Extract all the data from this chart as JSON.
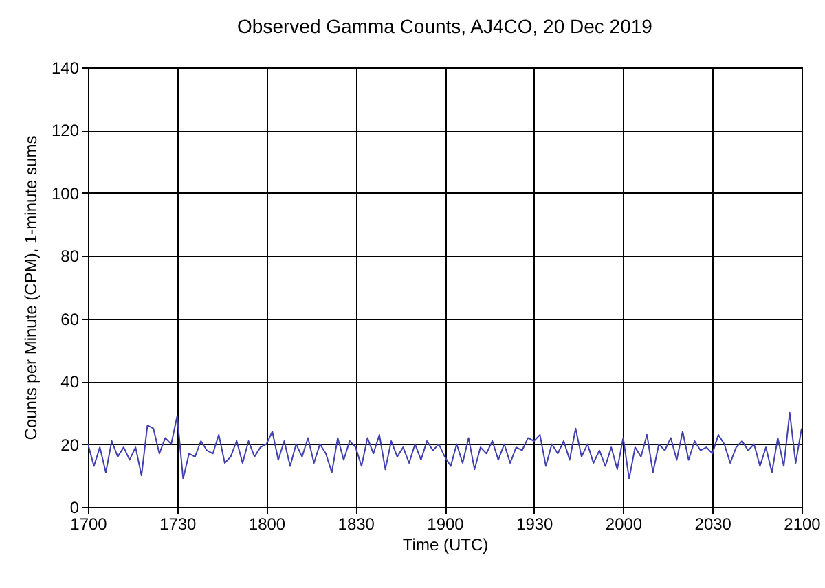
{
  "chart_data": {
    "type": "line",
    "title": "Observed Gamma Counts, AJ4CO, 20 Dec 2019",
    "xlabel": "Time (UTC)",
    "ylabel": "Counts per Minute (CPM), 1-minute sums",
    "categories": [
      "1700",
      null,
      null,
      null,
      null,
      null,
      null,
      null,
      null,
      null,
      null,
      null,
      null,
      null,
      null,
      "1730",
      null,
      null,
      null,
      null,
      null,
      null,
      null,
      null,
      null,
      null,
      null,
      null,
      null,
      null,
      "1800",
      null,
      null,
      null,
      null,
      null,
      null,
      null,
      null,
      null,
      null,
      null,
      null,
      null,
      null,
      "1830",
      null,
      null,
      null,
      null,
      null,
      null,
      null,
      null,
      null,
      null,
      null,
      null,
      null,
      null,
      "1900",
      null,
      null,
      null,
      null,
      null,
      null,
      null,
      null,
      null,
      null,
      null,
      null,
      null,
      null,
      "1930",
      null,
      null,
      null,
      null,
      null,
      null,
      null,
      null,
      null,
      null,
      null,
      null,
      null,
      null,
      "2000",
      null,
      null,
      null,
      null,
      null,
      null,
      null,
      null,
      null,
      null,
      null,
      null,
      null,
      null,
      "2030",
      null,
      null,
      null,
      null,
      null,
      null,
      null,
      null,
      null,
      null,
      null,
      null,
      null,
      null,
      "2100"
    ],
    "series": [
      {
        "color": "#4040b0",
        "values": [
          20,
          13,
          19,
          11,
          21,
          16,
          19,
          15,
          19,
          10,
          26,
          25,
          17,
          22,
          20,
          29,
          9,
          17,
          16,
          21,
          18,
          17,
          23,
          14,
          16,
          21,
          14,
          21,
          16,
          19,
          20,
          24,
          15,
          21,
          13,
          20,
          16,
          22,
          14,
          20,
          17,
          11,
          22,
          15,
          21,
          19,
          13,
          22,
          17,
          23,
          12,
          21,
          16,
          19,
          14,
          20,
          15,
          21,
          18,
          20,
          16,
          13,
          20,
          14,
          22,
          12,
          19,
          17,
          21,
          15,
          20,
          14,
          19,
          18,
          22,
          21,
          23,
          13,
          20,
          17,
          21,
          15,
          25,
          16,
          20,
          14,
          18,
          13,
          19,
          12,
          22,
          9,
          19,
          16,
          23,
          11,
          20,
          18,
          22,
          15,
          24,
          15,
          21,
          18,
          19,
          17,
          23,
          20,
          14,
          19,
          21,
          18,
          20,
          13,
          19,
          11,
          22,
          13,
          30,
          14,
          25
        ]
      }
    ],
    "ylim": [
      0,
      140
    ],
    "yticks": [
      0,
      20,
      40,
      60,
      80,
      100,
      120,
      140
    ],
    "grid": true,
    "line_style": "solid"
  }
}
